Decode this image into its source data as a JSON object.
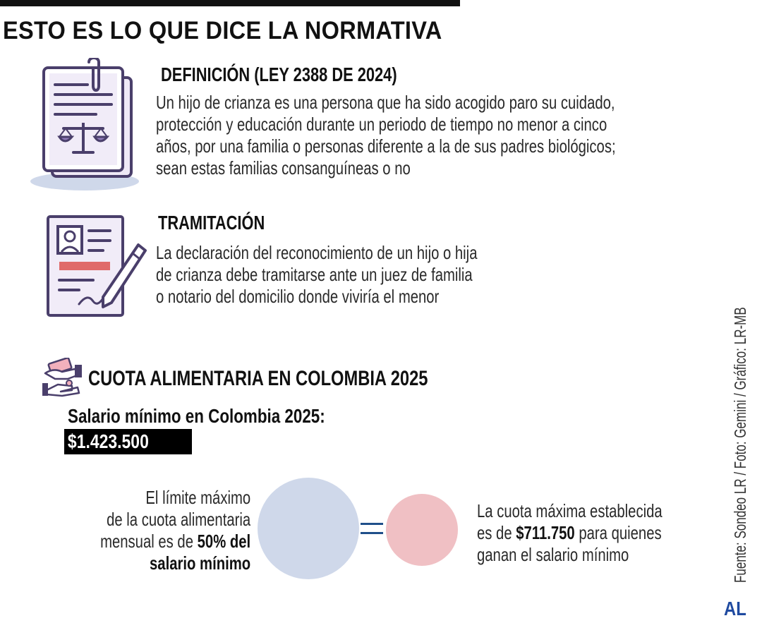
{
  "title": "ESTO ES LO QUE DICE LA NORMATIVA",
  "definicion": {
    "heading": "DEFINICIÓN (LEY 2388 DE 2024)",
    "lines": [
      "Un hijo de crianza es una persona que ha sido acogido paro su cuidado,",
      "protección y educación durante un periodo de tiempo no menor a cinco",
      "años, por una familia o personas diferente a la de sus padres biológicos;",
      "sean estas familias consanguíneas o no"
    ],
    "icon": "legal-document-scales-icon"
  },
  "tramitacion": {
    "heading": "TRAMITACIÓN",
    "lines": [
      "La declaración del reconocimiento de un hijo o hija",
      "de crianza debe tramitarse ante un juez de familia",
      "o notario del domicilio donde viviría el menor"
    ],
    "icon": "signed-document-pen-icon"
  },
  "cuota": {
    "heading": "CUOTA ALIMENTARIA EN COLOMBIA 2025",
    "icon": "hands-money-icon",
    "salary_label": "Salario mínimo en Colombia 2025:",
    "salary_value": "$1.423.500",
    "left": {
      "line1": "El límite máximo",
      "line2": "de la cuota alimentaria",
      "line3_pre": "mensual es de ",
      "line3_bold": "50% del",
      "line4_bold": "salario mínimo"
    },
    "right": {
      "line1": "La cuota máxima establecida",
      "line2_pre": "es de ",
      "line2_bold": "$711.750",
      "line2_post": " para quienes",
      "line3": "ganan el salario mínimo"
    },
    "circle_colors": {
      "big": "#cfd8ea",
      "small": "#f0c0c4",
      "equals": "#1f4f8a"
    }
  },
  "credit": "Fuente: Sondeo LR / Foto: Gemini / Gráfico: LR-MB",
  "logo": "AL"
}
